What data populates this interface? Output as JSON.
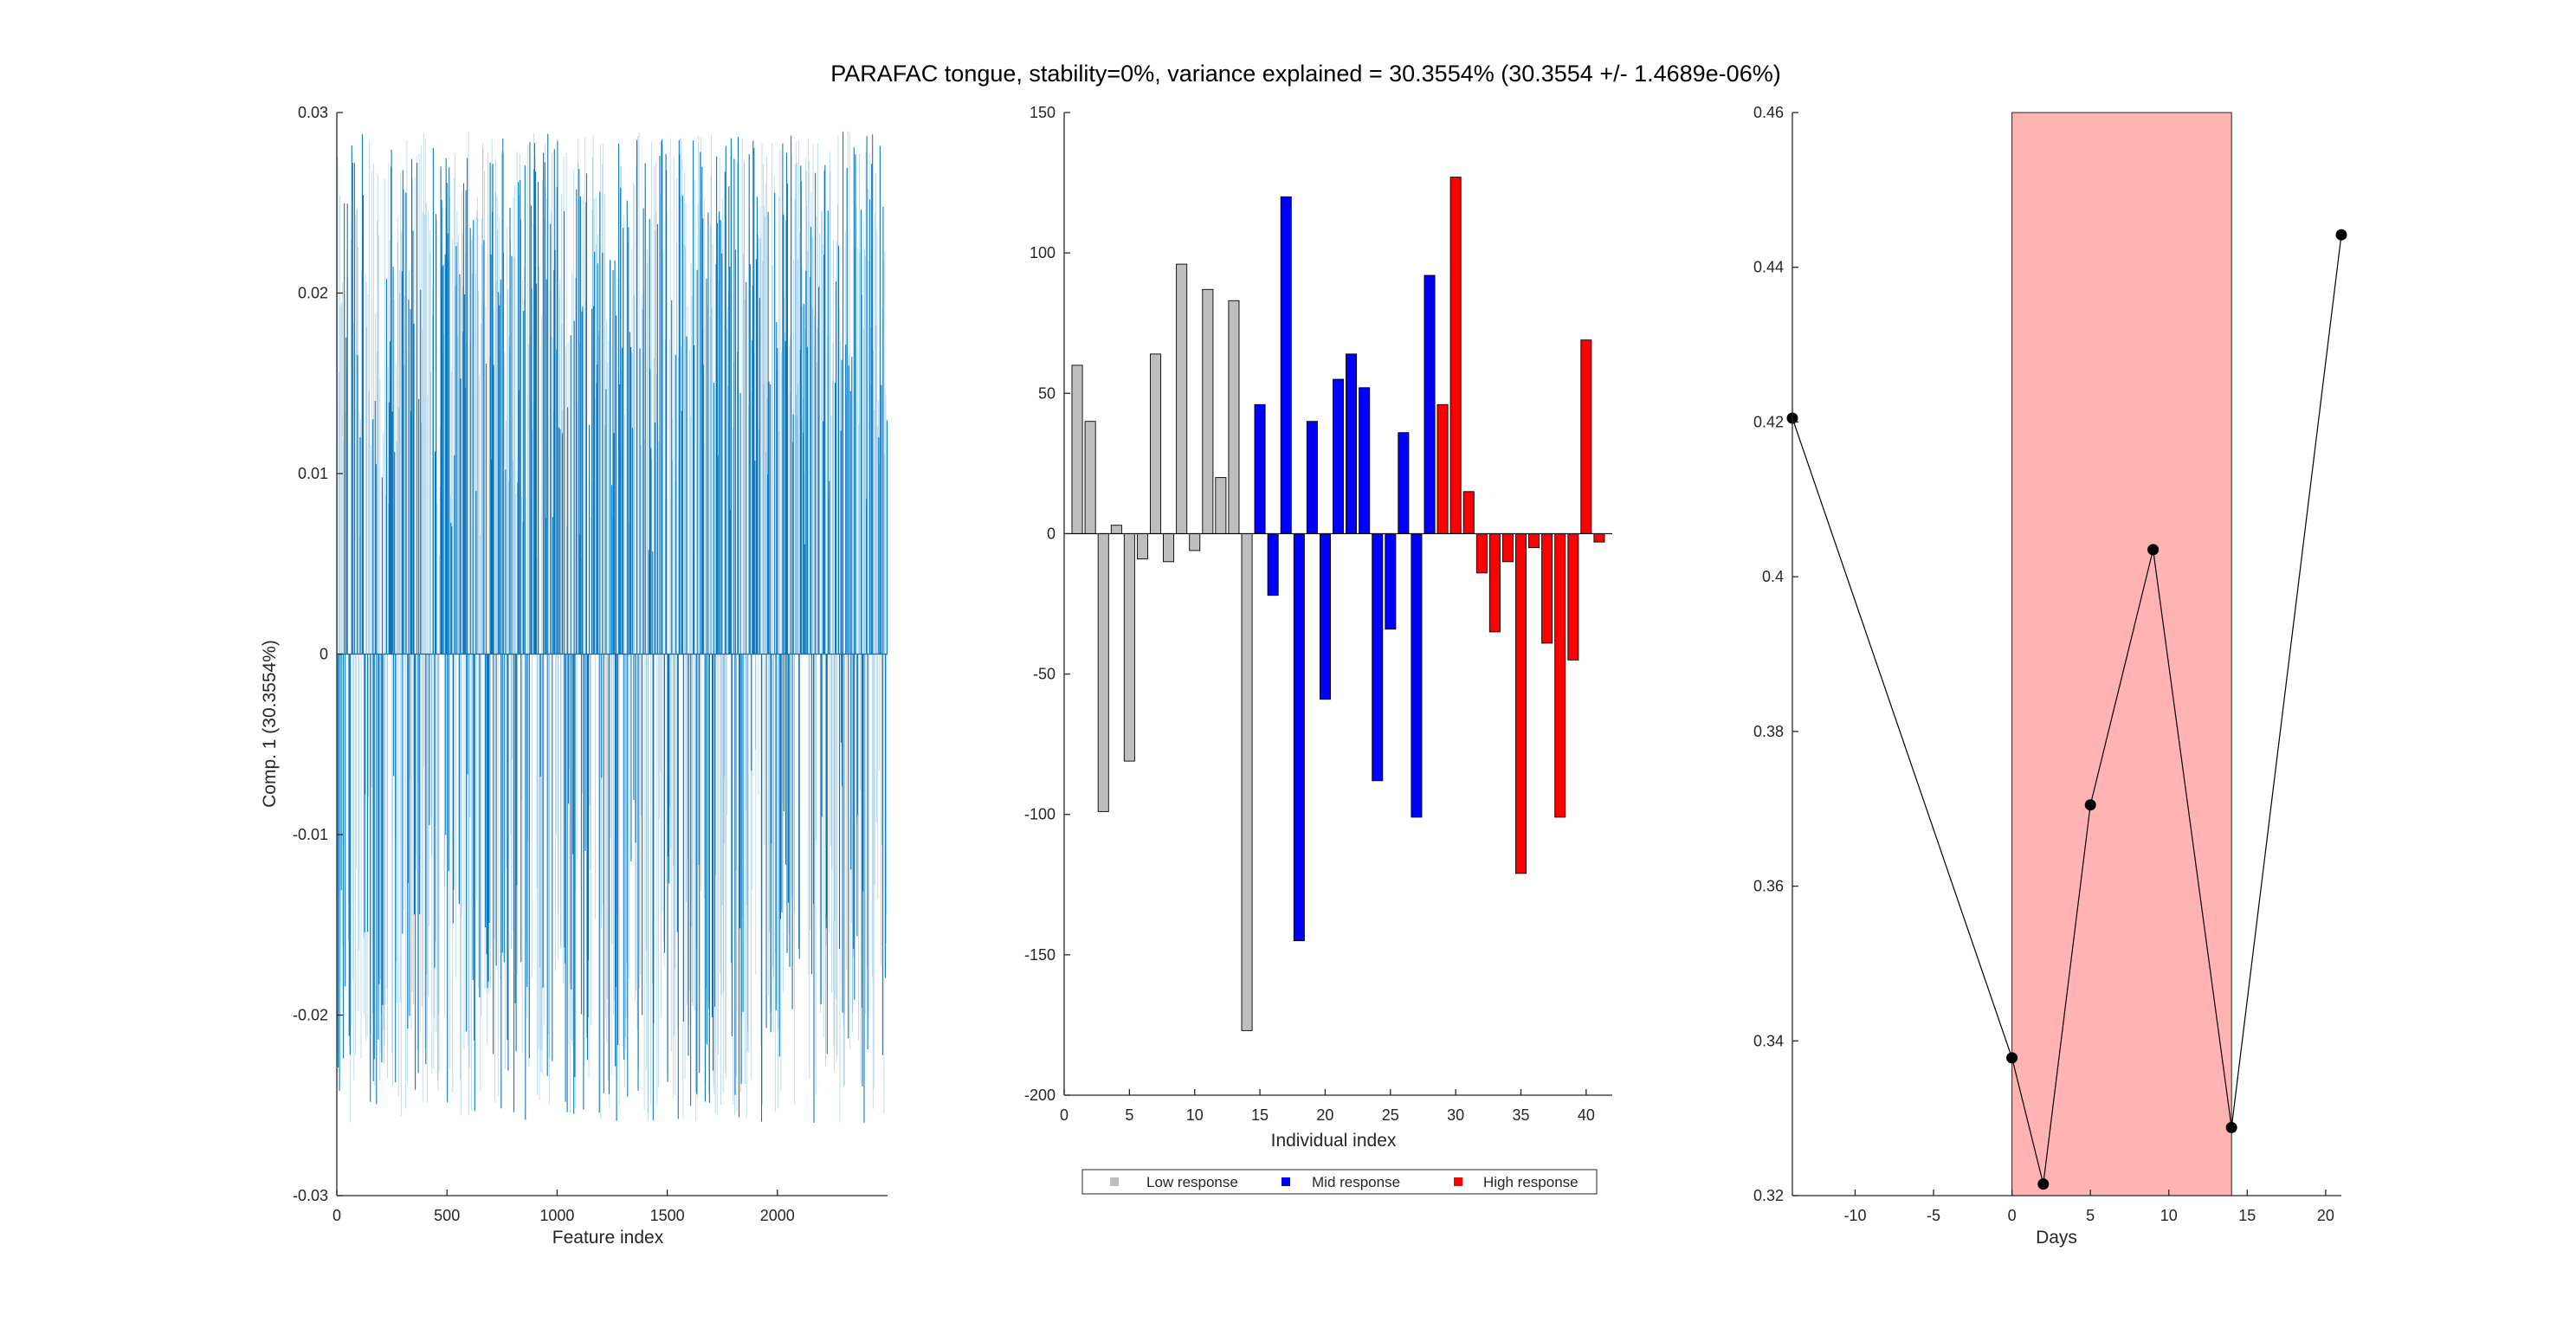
{
  "chart_data": [
    {
      "type": "bar",
      "title": "PARAFAC tongue, stability=0%, variance explained =  30.3554% (30.3554 +/- 1.4689e-06%)",
      "xlabel": "Feature index",
      "ylabel": "Comp. 1 (30.3554%)",
      "xlim": [
        0,
        2500
      ],
      "ylim": [
        -0.03,
        0.03
      ],
      "xticks": [
        "0",
        "500",
        "1000",
        "1500",
        "2000"
      ],
      "yticks": [
        "-0.03",
        "-0.02",
        "-0.01",
        "0",
        "0.01",
        "0.02",
        "0.03"
      ],
      "series": [
        {
          "color": "#0072BD",
          "feature_count": 2500,
          "pos_range": [
            0,
            0.029
          ],
          "neg_range": [
            -0.026,
            0
          ]
        }
      ]
    },
    {
      "type": "bar",
      "xlabel": "Individual index",
      "xlim": [
        0,
        42
      ],
      "ylim": [
        -200,
        150
      ],
      "xticks": [
        "0",
        "5",
        "10",
        "15",
        "20",
        "25",
        "30",
        "35",
        "40"
      ],
      "yticks": [
        "-200",
        "-150",
        "-100",
        "-50",
        "0",
        "50",
        "100",
        "150"
      ],
      "groups": [
        {
          "name": "Low response",
          "color": "#BEBEBE"
        },
        {
          "name": "Mid response",
          "color": "#0000FF"
        },
        {
          "name": "High response",
          "color": "#FF0000"
        }
      ],
      "legend_position": "bottom",
      "bars": [
        {
          "x": 1,
          "value": 60,
          "group": 0
        },
        {
          "x": 2,
          "value": 40,
          "group": 0
        },
        {
          "x": 3,
          "value": -99,
          "group": 0
        },
        {
          "x": 4,
          "value": 3,
          "group": 0
        },
        {
          "x": 5,
          "value": -81,
          "group": 0
        },
        {
          "x": 6,
          "value": -9,
          "group": 0
        },
        {
          "x": 7,
          "value": 64,
          "group": 0
        },
        {
          "x": 8,
          "value": -10,
          "group": 0
        },
        {
          "x": 9,
          "value": 96,
          "group": 0
        },
        {
          "x": 10,
          "value": -6,
          "group": 0
        },
        {
          "x": 11,
          "value": 87,
          "group": 0
        },
        {
          "x": 12,
          "value": 20,
          "group": 0
        },
        {
          "x": 13,
          "value": 83,
          "group": 0
        },
        {
          "x": 14,
          "value": -177,
          "group": 0
        },
        {
          "x": 15,
          "value": 46,
          "group": 1
        },
        {
          "x": 16,
          "value": -22,
          "group": 1
        },
        {
          "x": 17,
          "value": 120,
          "group": 1
        },
        {
          "x": 18,
          "value": -145,
          "group": 1
        },
        {
          "x": 19,
          "value": 40,
          "group": 1
        },
        {
          "x": 20,
          "value": -59,
          "group": 1
        },
        {
          "x": 21,
          "value": 55,
          "group": 1
        },
        {
          "x": 22,
          "value": 64,
          "group": 1
        },
        {
          "x": 23,
          "value": 52,
          "group": 1
        },
        {
          "x": 24,
          "value": -88,
          "group": 1
        },
        {
          "x": 25,
          "value": -34,
          "group": 1
        },
        {
          "x": 26,
          "value": 36,
          "group": 1
        },
        {
          "x": 27,
          "value": -101,
          "group": 1
        },
        {
          "x": 28,
          "value": 92,
          "group": 1
        },
        {
          "x": 29,
          "value": 46,
          "group": 2
        },
        {
          "x": 30,
          "value": 127,
          "group": 2
        },
        {
          "x": 31,
          "value": 15,
          "group": 2
        },
        {
          "x": 32,
          "value": -14,
          "group": 2
        },
        {
          "x": 33,
          "value": -35,
          "group": 2
        },
        {
          "x": 34,
          "value": -10,
          "group": 2
        },
        {
          "x": 35,
          "value": -121,
          "group": 2
        },
        {
          "x": 36,
          "value": -5,
          "group": 2
        },
        {
          "x": 37,
          "value": -39,
          "group": 2
        },
        {
          "x": 38,
          "value": -101,
          "group": 2
        },
        {
          "x": 39,
          "value": -45,
          "group": 2
        },
        {
          "x": 40,
          "value": 69,
          "group": 2
        },
        {
          "x": 41,
          "value": -3,
          "group": 2
        }
      ]
    },
    {
      "type": "line",
      "xlabel": "Days",
      "xlim": [
        -14,
        21
      ],
      "ylim": [
        0.32,
        0.46
      ],
      "xticks": [
        "-10",
        "-5",
        "0",
        "5",
        "10",
        "15",
        "20"
      ],
      "yticks": [
        "0.32",
        "0.34",
        "0.36",
        "0.38",
        "0.4",
        "0.42",
        "0.44",
        "0.46"
      ],
      "shaded_region": {
        "x": [
          0,
          14
        ],
        "color": "#FFB3B3"
      },
      "series": [
        {
          "color": "#000000",
          "x": [
            -14,
            0,
            2,
            5,
            9,
            14,
            21
          ],
          "y": [
            0.4205,
            0.3378,
            0.3215,
            0.3705,
            0.4035,
            0.3288,
            0.4442
          ]
        }
      ]
    }
  ]
}
